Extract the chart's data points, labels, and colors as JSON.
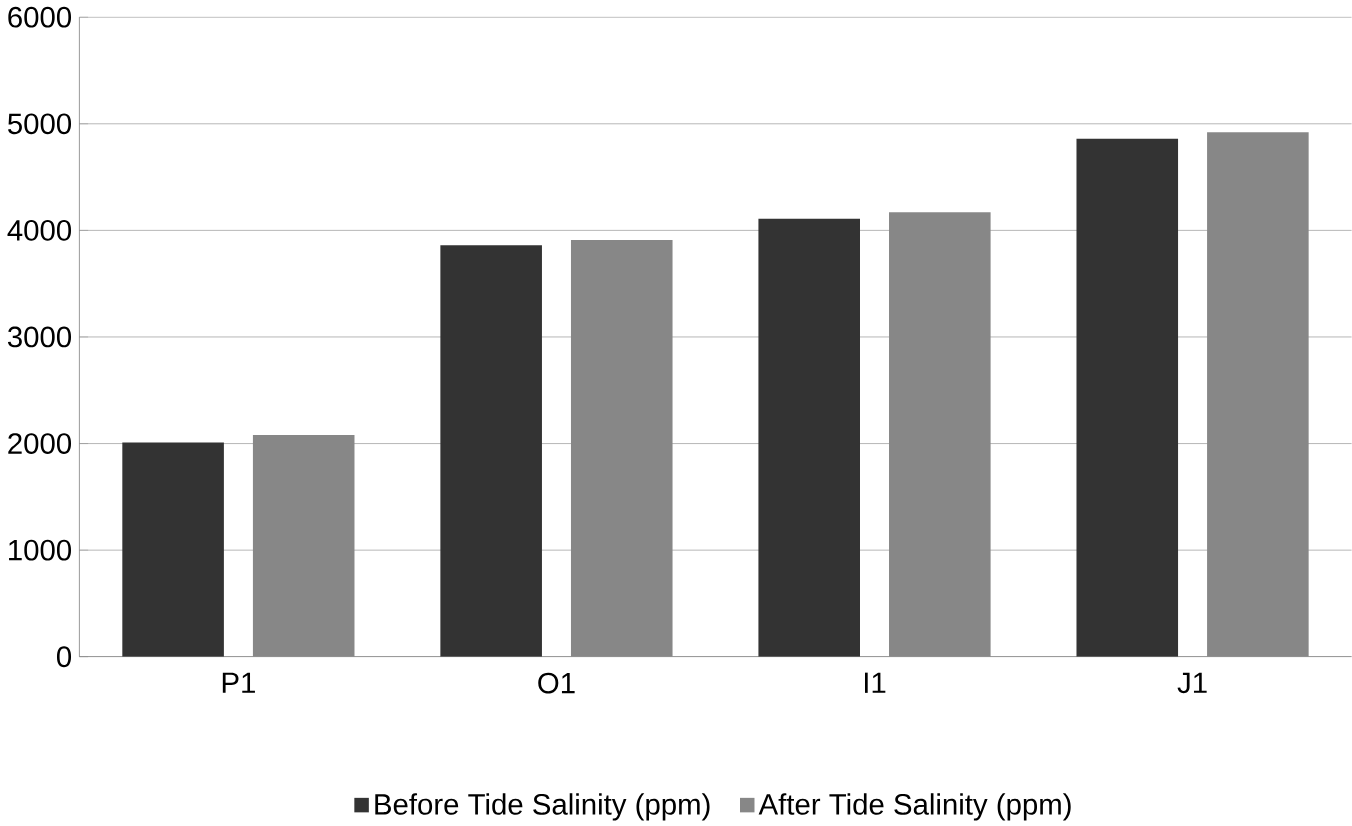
{
  "chart_data": {
    "type": "bar",
    "categories": [
      "P1",
      "O1",
      "I1",
      "J1"
    ],
    "series": [
      {
        "name": "Before Tide Salinity (ppm)",
        "color": "#333333",
        "values": [
          2010,
          3860,
          4110,
          4860
        ]
      },
      {
        "name": "After Tide Salinity (ppm)",
        "color": "#878787",
        "values": [
          2080,
          3910,
          4170,
          4920
        ]
      }
    ],
    "ylim": [
      0,
      6000
    ],
    "yticks": [
      0,
      1000,
      2000,
      3000,
      4000,
      5000,
      6000
    ],
    "grid": "y",
    "legend": "bottom"
  }
}
